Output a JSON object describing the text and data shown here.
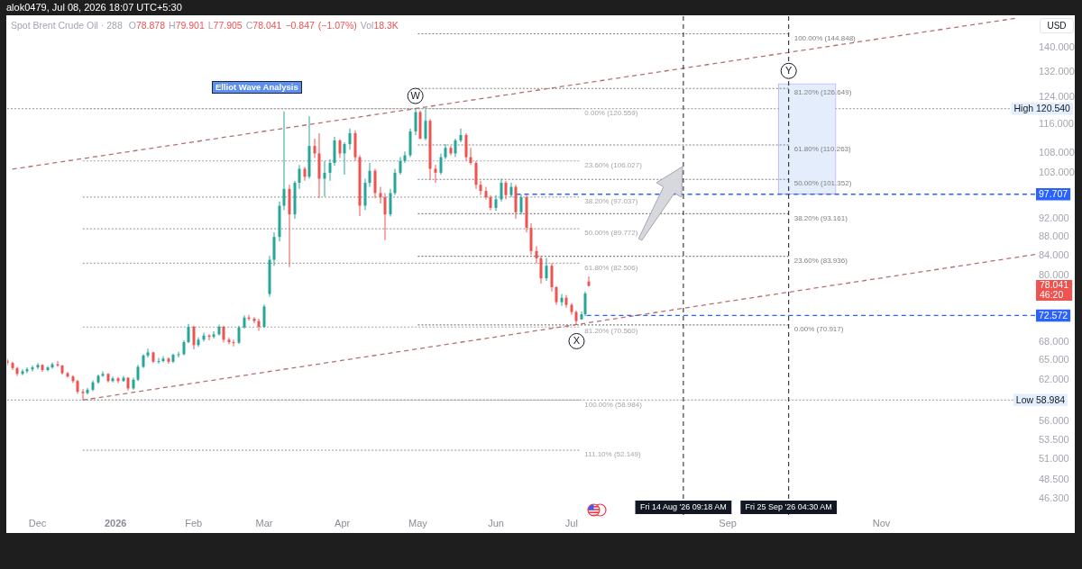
{
  "chart_data": {
    "type": "candlestick",
    "title": "Spot Brent Crude Oil · 288",
    "subtitle": "O78.878 H79.901 L77.905 C78.041 −0.847 (−1.07%) Vol18.3K",
    "ylabel": "USD",
    "log": true,
    "xlim": [
      "2025-11-19",
      "2027-01-01"
    ],
    "xticks": [
      {
        "value": "2025-12-01",
        "label": "Dec"
      },
      {
        "value": "2026-01-01",
        "label": "2026"
      },
      {
        "value": "2026-02-01",
        "label": "Feb"
      },
      {
        "value": "2026-03-01",
        "label": "Mar"
      },
      {
        "value": "2026-04-01",
        "label": "Apr"
      },
      {
        "value": "2026-05-01",
        "label": "May"
      },
      {
        "value": "2026-06-01",
        "label": "Jun"
      },
      {
        "value": "2026-07-01",
        "label": "Jul"
      },
      {
        "value": "2026-09-01",
        "label": "Sep"
      },
      {
        "value": "2026-11-01",
        "label": "Nov"
      }
    ],
    "ylim": [
      44.5,
      151.2
    ],
    "yticks": [
      {
        "value": 140,
        "label": "140.000"
      },
      {
        "value": 132,
        "label": "132.000"
      },
      {
        "value": 124,
        "label": "124.000"
      },
      {
        "value": 116,
        "label": "116.000"
      },
      {
        "value": 108,
        "label": "108.000"
      },
      {
        "value": 103,
        "label": "103.000"
      },
      {
        "value": 92,
        "label": "92.000"
      },
      {
        "value": 88,
        "label": "88.000"
      },
      {
        "value": 84,
        "label": "84.000"
      },
      {
        "value": 80,
        "label": "80.000"
      },
      {
        "value": 68,
        "label": "68.000"
      },
      {
        "value": 65,
        "label": "65.000"
      },
      {
        "value": 62,
        "label": "62.000"
      },
      {
        "value": 56,
        "label": "56.000"
      },
      {
        "value": 53.5,
        "label": "53.500"
      },
      {
        "value": 51,
        "label": "51.000"
      },
      {
        "value": 48.5,
        "label": "48.500"
      },
      {
        "value": 46.3,
        "label": "46.300"
      }
    ],
    "series": [
      {
        "x": [
          "2025-11-19",
          "2025-11-21",
          "2025-11-23",
          "2025-11-25",
          "2025-11-27",
          "2025-11-29",
          "2025-12-01",
          "2025-12-03",
          "2025-12-05",
          "2025-12-07",
          "2025-12-09",
          "2025-12-11",
          "2025-12-13",
          "2025-12-15",
          "2025-12-17",
          "2025-12-19",
          "2025-12-21",
          "2025-12-23",
          "2025-12-25",
          "2025-12-27",
          "2025-12-29",
          "2025-12-31",
          "2026-01-02",
          "2026-01-04",
          "2026-01-06",
          "2026-01-08",
          "2026-01-10",
          "2026-01-12",
          "2026-01-14",
          "2026-01-16",
          "2026-01-18",
          "2026-01-20",
          "2026-01-22",
          "2026-01-24",
          "2026-01-26",
          "2026-01-28",
          "2026-01-30",
          "2026-02-01",
          "2026-02-03",
          "2026-02-05",
          "2026-02-07",
          "2026-02-09",
          "2026-02-11",
          "2026-02-13",
          "2026-02-15",
          "2026-02-17",
          "2026-02-19",
          "2026-02-21",
          "2026-02-23",
          "2026-02-25",
          "2026-02-27",
          "2026-03-01",
          "2026-03-03",
          "2026-03-05",
          "2026-03-07",
          "2026-03-09",
          "2026-03-11",
          "2026-03-13",
          "2026-03-15",
          "2026-03-17",
          "2026-03-19",
          "2026-03-21",
          "2026-03-23",
          "2026-03-25",
          "2026-03-27",
          "2026-03-29",
          "2026-03-31",
          "2026-04-02",
          "2026-04-04",
          "2026-04-06",
          "2026-04-08",
          "2026-04-10",
          "2026-04-12",
          "2026-04-14",
          "2026-04-16",
          "2026-04-18",
          "2026-04-20",
          "2026-04-22",
          "2026-04-24",
          "2026-04-26",
          "2026-04-28",
          "2026-04-30",
          "2026-05-02",
          "2026-05-04",
          "2026-05-06",
          "2026-05-08",
          "2026-05-10",
          "2026-05-12",
          "2026-05-14",
          "2026-05-16",
          "2026-05-18",
          "2026-05-20",
          "2026-05-22",
          "2026-05-24",
          "2026-05-26",
          "2026-05-28",
          "2026-05-30",
          "2026-06-01",
          "2026-06-03",
          "2026-06-05",
          "2026-06-07",
          "2026-06-09",
          "2026-06-11",
          "2026-06-13",
          "2026-06-15",
          "2026-06-17",
          "2026-06-19",
          "2026-06-21",
          "2026-06-23",
          "2026-06-25",
          "2026-06-27",
          "2026-06-29",
          "2026-07-01",
          "2026-07-03",
          "2026-07-05",
          "2026-07-06T12:00",
          "2026-07-08"
        ],
        "ohlc": [
          [
            65.0,
            65.3,
            64.2,
            64.6
          ],
          [
            64.6,
            64.8,
            63.5,
            63.8
          ],
          [
            63.8,
            64.0,
            62.6,
            62.9
          ],
          [
            62.9,
            63.6,
            62.7,
            63.3
          ],
          [
            63.3,
            63.9,
            63.0,
            63.6
          ],
          [
            63.6,
            64.2,
            63.3,
            63.9
          ],
          [
            63.9,
            64.6,
            63.6,
            64.3
          ],
          [
            64.3,
            64.4,
            63.2,
            63.5
          ],
          [
            63.5,
            64.1,
            63.3,
            63.9
          ],
          [
            63.9,
            64.7,
            63.7,
            64.4
          ],
          [
            64.4,
            64.9,
            64.0,
            64.2
          ],
          [
            64.2,
            64.3,
            62.8,
            63.0
          ],
          [
            63.0,
            63.2,
            62.3,
            62.5
          ],
          [
            62.5,
            62.7,
            61.5,
            61.8
          ],
          [
            61.8,
            62.0,
            59.9,
            60.2
          ],
          [
            60.2,
            60.6,
            58.984,
            60.0
          ],
          [
            60.0,
            60.8,
            59.8,
            60.5
          ],
          [
            60.5,
            61.9,
            60.3,
            61.6
          ],
          [
            61.6,
            62.8,
            61.4,
            62.6
          ],
          [
            62.6,
            63.3,
            62.4,
            62.9
          ],
          [
            62.9,
            63.0,
            61.6,
            61.8
          ],
          [
            61.8,
            62.5,
            61.6,
            62.2
          ],
          [
            62.2,
            62.4,
            61.5,
            61.8
          ],
          [
            61.8,
            62.6,
            61.7,
            62.3
          ],
          [
            62.3,
            62.4,
            60.4,
            60.7
          ],
          [
            60.7,
            62.3,
            60.5,
            62.0
          ],
          [
            62.0,
            64.3,
            61.8,
            64.0
          ],
          [
            64.0,
            66.0,
            63.8,
            65.8
          ],
          [
            65.8,
            66.9,
            65.5,
            66.3
          ],
          [
            66.3,
            66.4,
            64.6,
            64.8
          ],
          [
            64.8,
            65.4,
            64.5,
            64.9
          ],
          [
            64.9,
            65.7,
            64.7,
            65.3
          ],
          [
            65.3,
            65.5,
            64.5,
            64.8
          ],
          [
            64.8,
            66.1,
            64.6,
            65.9
          ],
          [
            65.9,
            66.4,
            65.5,
            66.0
          ],
          [
            66.0,
            68.3,
            65.8,
            68.0
          ],
          [
            68.0,
            71.1,
            67.8,
            70.6
          ],
          [
            70.6,
            70.8,
            66.8,
            67.5
          ],
          [
            67.5,
            68.8,
            67.2,
            68.4
          ],
          [
            68.4,
            69.6,
            68.1,
            69.1
          ],
          [
            69.1,
            69.3,
            68.3,
            68.9
          ],
          [
            68.9,
            69.8,
            68.6,
            69.3
          ],
          [
            69.3,
            71.0,
            69.1,
            70.6
          ],
          [
            70.6,
            70.8,
            67.9,
            68.4
          ],
          [
            68.4,
            68.7,
            67.6,
            68.0
          ],
          [
            68.0,
            68.4,
            67.3,
            67.9
          ],
          [
            67.9,
            70.8,
            67.7,
            70.5
          ],
          [
            70.5,
            72.6,
            70.3,
            72.2
          ],
          [
            72.2,
            72.7,
            71.7,
            72.0
          ],
          [
            72.0,
            72.3,
            71.2,
            71.6
          ],
          [
            71.6,
            72.0,
            69.9,
            70.6
          ],
          [
            70.6,
            74.6,
            70.4,
            74.2
          ],
          [
            76.5,
            84.0,
            76.0,
            83.2
          ],
          [
            83.2,
            89.0,
            82.0,
            88.0
          ],
          [
            88.0,
            96.0,
            87.0,
            95.0
          ],
          [
            95.0,
            119.7,
            94.0,
            99.0
          ],
          [
            99.0,
            100.0,
            81.7,
            93.0
          ],
          [
            93.0,
            101.0,
            92.0,
            100.5
          ],
          [
            100.5,
            105.0,
            99.0,
            104.0
          ],
          [
            104.0,
            104.5,
            101.0,
            102.0
          ],
          [
            102.0,
            118.3,
            101.5,
            110.0
          ],
          [
            110.0,
            112.0,
            106.8,
            108.0
          ],
          [
            108.0,
            113.5,
            96.8,
            101.5
          ],
          [
            101.5,
            106.0,
            97.2,
            103.0
          ],
          [
            103.0,
            106.5,
            101.0,
            105.5
          ],
          [
            105.5,
            112.5,
            104.8,
            111.5
          ],
          [
            111.5,
            111.8,
            106.8,
            108.0
          ],
          [
            108.0,
            111.0,
            102.5,
            110.5
          ],
          [
            110.5,
            114.8,
            109.0,
            113.5
          ],
          [
            113.5,
            114.3,
            106.0,
            107.0
          ],
          [
            107.0,
            107.5,
            92.6,
            95.0
          ],
          [
            95.0,
            101.5,
            94.0,
            100.5
          ],
          [
            100.5,
            105.5,
            99.5,
            103.5
          ],
          [
            103.5,
            104.0,
            96.8,
            98.0
          ],
          [
            98.0,
            99.5,
            95.5,
            97.0
          ],
          [
            97.0,
            98.0,
            87.3,
            93.0
          ],
          [
            93.0,
            99.0,
            92.5,
            98.0
          ],
          [
            98.0,
            104.0,
            97.5,
            103.0
          ],
          [
            103.0,
            107.0,
            102.5,
            106.0
          ],
          [
            106.0,
            108.5,
            105.5,
            107.5
          ],
          [
            107.5,
            114.8,
            107.0,
            114.0
          ],
          [
            114.0,
            120.559,
            113.0,
            119.5
          ],
          [
            119.5,
            120.0,
            111.8,
            112.0
          ],
          [
            112.0,
            120.3,
            111.5,
            117.0
          ],
          [
            117.0,
            117.5,
            101.2,
            104.0
          ],
          [
            104.0,
            105.0,
            100.5,
            103.0
          ],
          [
            103.0,
            108.0,
            102.5,
            107.0
          ],
          [
            107.0,
            110.5,
            106.5,
            109.5
          ],
          [
            109.5,
            110.0,
            107.5,
            108.0
          ],
          [
            108.0,
            112.0,
            107.0,
            111.5
          ],
          [
            111.5,
            114.8,
            111.0,
            113.0
          ],
          [
            113.0,
            113.5,
            106.0,
            107.0
          ],
          [
            107.0,
            109.5,
            105.0,
            105.5
          ],
          [
            105.5,
            106.0,
            99.0,
            100.0
          ],
          [
            100.0,
            101.0,
            97.5,
            98.5
          ],
          [
            98.5,
            99.5,
            96.5,
            97.0
          ],
          [
            97.0,
            97.5,
            93.9,
            94.5
          ],
          [
            94.5,
            97.5,
            93.8,
            96.5
          ],
          [
            96.5,
            101.5,
            96.0,
            100.5
          ],
          [
            100.5,
            101.0,
            96.5,
            97.5
          ],
          [
            97.5,
            100.5,
            97.0,
            99.5
          ],
          [
            99.5,
            100.0,
            92.0,
            93.5
          ],
          [
            93.5,
            97.7,
            93.0,
            97.0
          ],
          [
            97.0,
            97.5,
            89.0,
            90.0
          ],
          [
            90.0,
            91.0,
            84.2,
            85.0
          ],
          [
            85.0,
            86.0,
            82.5,
            83.5
          ],
          [
            83.5,
            84.0,
            78.5,
            79.5
          ],
          [
            79.5,
            83.6,
            79.0,
            82.0
          ],
          [
            82.0,
            82.5,
            77.0,
            77.8
          ],
          [
            77.8,
            78.0,
            74.5,
            75.0
          ],
          [
            75.0,
            76.5,
            74.3,
            75.8
          ],
          [
            75.8,
            76.3,
            74.0,
            74.5
          ],
          [
            74.5,
            74.8,
            72.7,
            73.2
          ],
          [
            73.2,
            73.5,
            70.917,
            71.6
          ],
          [
            71.9,
            73.3,
            71.8,
            72.8
          ],
          [
            72.8,
            77.0,
            72.5,
            76.6
          ],
          [
            78.878,
            79.901,
            77.905,
            78.041
          ]
        ],
        "colors": [
          "#ef5350",
          "#ef5350",
          "#ef5350",
          "#26a69a",
          "#26a69a",
          "#26a69a",
          "#26a69a",
          "#ef5350",
          "#26a69a",
          "#26a69a",
          "#ef5350",
          "#ef5350",
          "#ef5350",
          "#ef5350",
          "#ef5350",
          "#ef5350",
          "#26a69a",
          "#26a69a",
          "#26a69a",
          "#26a69a",
          "#ef5350",
          "#26a69a",
          "#ef5350",
          "#26a69a",
          "#ef5350",
          "#26a69a",
          "#26a69a",
          "#26a69a",
          "#26a69a",
          "#ef5350",
          "#26a69a",
          "#26a69a",
          "#ef5350",
          "#26a69a",
          "#26a69a",
          "#26a69a",
          "#26a69a",
          "#ef5350",
          "#26a69a",
          "#26a69a",
          "#ef5350",
          "#26a69a",
          "#26a69a",
          "#ef5350",
          "#ef5350",
          "#ef5350",
          "#26a69a",
          "#26a69a",
          "#ef5350",
          "#ef5350",
          "#ef5350",
          "#26a69a",
          "#26a69a",
          "#26a69a",
          "#26a69a",
          "#26a69a",
          "#ef5350",
          "#26a69a",
          "#26a69a",
          "#ef5350",
          "#26a69a",
          "#ef5350",
          "#ef5350",
          "#26a69a",
          "#26a69a",
          "#26a69a",
          "#ef5350",
          "#26a69a",
          "#26a69a",
          "#ef5350",
          "#ef5350",
          "#26a69a",
          "#26a69a",
          "#ef5350",
          "#ef5350",
          "#ef5350",
          "#26a69a",
          "#26a69a",
          "#26a69a",
          "#26a69a",
          "#26a69a",
          "#26a69a",
          "#ef5350",
          "#26a69a",
          "#ef5350",
          "#ef5350",
          "#26a69a",
          "#26a69a",
          "#ef5350",
          "#26a69a",
          "#26a69a",
          "#ef5350",
          "#ef5350",
          "#ef5350",
          "#ef5350",
          "#ef5350",
          "#ef5350",
          "#26a69a",
          "#26a69a",
          "#ef5350",
          "#26a69a",
          "#ef5350",
          "#26a69a",
          "#ef5350",
          "#ef5350",
          "#ef5350",
          "#ef5350",
          "#26a69a",
          "#ef5350",
          "#ef5350",
          "#26a69a",
          "#ef5350",
          "#ef5350",
          "#ef5350",
          "#26a69a",
          "#26a69a",
          "#ef5350"
        ]
      },
      {
        "type": "bar",
        "x": [
          "2026-10-02T12:00"
        ],
        "base": [
          97.707
        ],
        "values": [
          30.5
        ],
        "color": "#e3edfc"
      },
      {
        "type": "line",
        "x": [
          "2025-11-21",
          "2026-12-24"
        ],
        "values": [
          103.9,
          150.4
        ],
        "color": "#b5706f",
        "line_style": "dashed"
      },
      {
        "type": "line",
        "x": [
          "2025-12-19",
          "2027-01-01"
        ],
        "values": [
          58.984,
          84.3
        ],
        "color": "#b5706f",
        "line_style": "dashed"
      },
      {
        "type": "line",
        "name": "0.00% (120.559)",
        "x": [
          "2025-12-19",
          "2026-07-04"
        ],
        "values": [
          120.559,
          120.559
        ],
        "color": "#a6a6a6",
        "line_style": "dotted"
      },
      {
        "type": "line",
        "name": "23.60% (106.027)",
        "x": [
          "2025-12-19",
          "2026-07-04"
        ],
        "values": [
          106.027,
          106.027
        ],
        "color": "#a6a6a6",
        "line_style": "dotted"
      },
      {
        "type": "line",
        "name": "38.20% (97.037)",
        "x": [
          "2025-12-19",
          "2026-07-04"
        ],
        "values": [
          97.037,
          97.037
        ],
        "color": "#a6a6a6",
        "line_style": "dotted"
      },
      {
        "type": "line",
        "name": "50.00% (89.772)",
        "x": [
          "2025-12-19",
          "2026-07-04"
        ],
        "values": [
          89.772,
          89.772
        ],
        "color": "#a6a6a6",
        "line_style": "dotted"
      },
      {
        "type": "line",
        "name": "61.80% (82.506)",
        "x": [
          "2025-12-19",
          "2026-07-04"
        ],
        "values": [
          82.506,
          82.506
        ],
        "color": "#a6a6a6",
        "line_style": "dotted"
      },
      {
        "type": "line",
        "name": "81.20% (70.560)",
        "x": [
          "2025-12-19",
          "2026-07-04"
        ],
        "values": [
          70.56,
          70.56
        ],
        "color": "#a6a6a6",
        "line_style": "dotted"
      },
      {
        "type": "line",
        "name": "100.00% (58.984)",
        "x": [
          "2025-12-19",
          "2026-07-04"
        ],
        "values": [
          58.984,
          58.984
        ],
        "color": "#a6a6a6",
        "line_style": "dotted"
      },
      {
        "type": "line",
        "name": "111.10% (52.149)",
        "x": [
          "2025-12-19",
          "2026-07-04"
        ],
        "values": [
          52.149,
          52.149
        ],
        "color": "#a6a6a6",
        "line_style": "dotted"
      },
      {
        "type": "line",
        "name": "0.00% (70.917)",
        "x": [
          "2026-05-01",
          "2026-09-25T04:30"
        ],
        "values": [
          70.917,
          70.917
        ],
        "color": "#808080",
        "line_style": "dotted"
      },
      {
        "type": "line",
        "name": "23.60% (83.936)",
        "x": [
          "2026-05-01",
          "2026-09-25T04:30"
        ],
        "values": [
          83.936,
          83.936
        ],
        "color": "#808080",
        "line_style": "dotted"
      },
      {
        "type": "line",
        "name": "38.20% (93.161)",
        "x": [
          "2026-05-01",
          "2026-09-25T04:30"
        ],
        "values": [
          93.161,
          93.161
        ],
        "color": "#808080",
        "line_style": "dotted"
      },
      {
        "type": "line",
        "name": "50.00% (101.352)",
        "x": [
          "2026-05-01",
          "2026-09-25T04:30"
        ],
        "values": [
          101.352,
          101.352
        ],
        "color": "#808080",
        "line_style": "dotted"
      },
      {
        "type": "line",
        "name": "61.80% (110.263)",
        "x": [
          "2026-05-01",
          "2026-09-25T04:30"
        ],
        "values": [
          110.263,
          110.263
        ],
        "color": "#808080",
        "line_style": "dotted"
      },
      {
        "type": "line",
        "name": "81.20% (126.649)",
        "x": [
          "2026-05-01",
          "2026-09-25T04:30"
        ],
        "values": [
          126.649,
          126.649
        ],
        "color": "#808080",
        "line_style": "dotted"
      },
      {
        "type": "line",
        "name": "100.00% (144.848)",
        "x": [
          "2026-05-01",
          "2026-09-25T04:30"
        ],
        "values": [
          144.848,
          144.848
        ],
        "color": "#808080",
        "line_style": "dotted"
      },
      {
        "type": "line",
        "x": [
          "2026-06-09",
          "2027-01-01"
        ],
        "values": [
          97.707,
          97.707
        ],
        "color": "#2962ff",
        "line_style": "dashed",
        "value_labels": [
          null,
          "97.707"
        ]
      },
      {
        "type": "line",
        "x": [
          "2026-07-07",
          "2027-01-01"
        ],
        "values": [
          72.572,
          72.572
        ],
        "color": "#2962ff",
        "line_style": "dashed",
        "value_labels": [
          null,
          "72.572"
        ]
      }
    ],
    "ref_lines": [
      {
        "axis": "y",
        "value": 120.54,
        "label": "High 120.540",
        "color": "#a8abb3",
        "line_style": "dotted"
      },
      {
        "axis": "y",
        "value": 58.984,
        "label": "Low 58.984",
        "color": "#a8abb3",
        "line_style": "dotted"
      },
      {
        "axis": "x",
        "value": "2026-08-14T09:18",
        "label": "Fri 14 Aug '26 09:18 AM",
        "color": "#131722",
        "line_style": "dashed"
      },
      {
        "axis": "x",
        "value": "2026-09-25T04:30",
        "label": "Fri 25 Sep '26 04:30 AM",
        "color": "#131722",
        "line_style": "dashed"
      }
    ],
    "annotations": [
      "alok0479, Jul 08, 2026 18:07 UTC+5:30",
      "Elliot Wave Analysis",
      "78.041\n46:20",
      {
        "text": "W",
        "x": "2026-04-30",
        "y": 120.559
      },
      {
        "text": "X",
        "x": "2026-07-03",
        "y": 70.917
      },
      {
        "text": "Y",
        "x": "2026-09-25T04:30",
        "y": 128.2
      }
    ]
  }
}
